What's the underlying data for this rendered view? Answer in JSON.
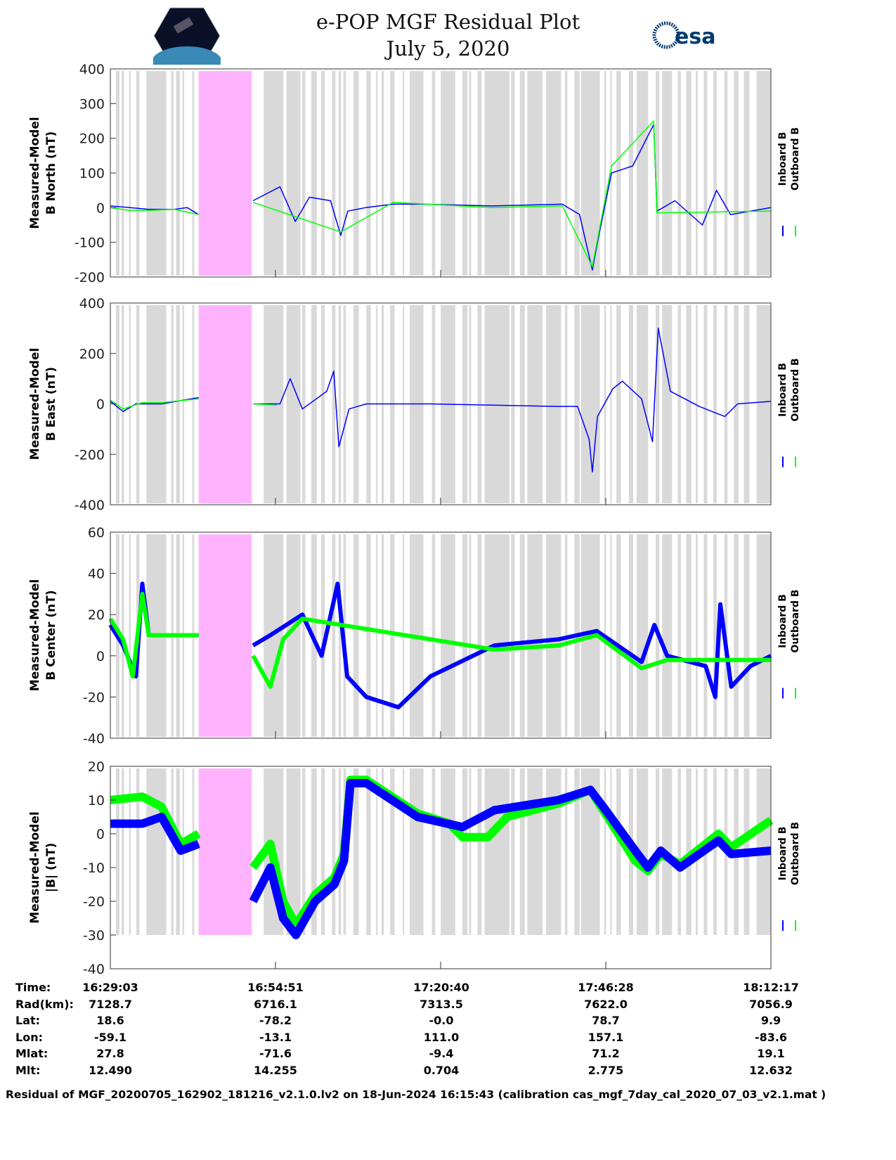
{
  "header": {
    "title": "e-POP MGF Residual Plot",
    "date": "July 5, 2020",
    "logo_left": "CASSIOPE",
    "logo_right": "esa"
  },
  "chart_data": [
    {
      "type": "line",
      "ylabel": [
        "Measured-Model",
        "B North (nT)"
      ],
      "ylim": [
        -200,
        400
      ],
      "yticks": [
        400,
        300,
        200,
        100,
        0,
        -100,
        -200
      ],
      "legend": [
        "Inboard B",
        "Outboard B"
      ],
      "series": [
        {
          "name": "Inboard B",
          "color": "#0000ff",
          "points": [
            [
              0,
              5
            ],
            [
              3,
              0
            ],
            [
              6,
              -5
            ],
            [
              10,
              -5
            ],
            [
              12,
              0
            ],
            [
              13.8,
              -20
            ],
            null,
            [
              22.3,
              20
            ],
            [
              26.5,
              60
            ],
            [
              28.9,
              -40
            ],
            [
              31.1,
              30
            ],
            [
              34.4,
              20
            ],
            [
              36,
              -80
            ],
            [
              37.1,
              -10
            ],
            [
              39.9,
              0
            ],
            [
              44.2,
              10
            ],
            [
              48.6,
              10
            ],
            [
              59.6,
              5
            ],
            [
              70.6,
              10
            ],
            [
              73.3,
              -20
            ],
            [
              75.3,
              -180
            ],
            [
              76.1,
              -100
            ],
            [
              78.3,
              100
            ],
            [
              81.6,
              120
            ],
            [
              84.9,
              240
            ],
            [
              85.4,
              -10
            ],
            [
              88.2,
              20
            ],
            [
              92.5,
              -50
            ],
            [
              94.7,
              50
            ],
            [
              96.9,
              -20
            ],
            [
              103.2,
              0
            ]
          ]
        },
        {
          "name": "Outboard B",
          "color": "#00ff00",
          "points": [
            [
              0,
              0
            ],
            [
              3,
              -8
            ],
            [
              6,
              -8
            ],
            [
              10,
              -5
            ],
            [
              13.8,
              -20
            ],
            null,
            [
              22.3,
              15
            ],
            [
              36,
              -70
            ],
            [
              44.2,
              15
            ],
            [
              59.6,
              0
            ],
            [
              70.6,
              5
            ],
            [
              75.3,
              -170
            ],
            [
              78.3,
              120
            ],
            [
              84.9,
              250
            ],
            [
              85.4,
              -15
            ],
            [
              103.2,
              -10
            ]
          ]
        }
      ]
    },
    {
      "type": "line",
      "ylabel": [
        "Measured-Model",
        "B East (nT)"
      ],
      "ylim": [
        -400,
        400
      ],
      "yticks": [
        400,
        200,
        0,
        -200,
        -400
      ],
      "legend": [
        "Inboard B",
        "Outboard B"
      ],
      "series": [
        {
          "name": "Inboard B",
          "color": "#0000ff",
          "points": [
            [
              0,
              10
            ],
            [
              2,
              -30
            ],
            [
              4,
              0
            ],
            [
              8,
              0
            ],
            [
              13.8,
              25
            ],
            null,
            [
              22.3,
              0
            ],
            [
              26.5,
              0
            ],
            [
              28.1,
              100
            ],
            [
              30,
              -20
            ],
            [
              33.8,
              50
            ],
            [
              34.9,
              130
            ],
            [
              35.7,
              -170
            ],
            [
              37.3,
              -20
            ],
            [
              40,
              0
            ],
            [
              50,
              0
            ],
            [
              70,
              -10
            ],
            [
              73,
              -10
            ],
            [
              74.8,
              -140
            ],
            [
              75.3,
              -270
            ],
            [
              76.1,
              -50
            ],
            [
              78.5,
              60
            ],
            [
              80,
              90
            ],
            [
              83,
              20
            ],
            [
              84.7,
              -150
            ],
            [
              85.6,
              300
            ],
            [
              87.5,
              50
            ],
            [
              92,
              -10
            ],
            [
              94,
              -30
            ],
            [
              96,
              -50
            ],
            [
              98,
              0
            ],
            [
              103.2,
              10
            ]
          ]
        },
        {
          "name": "Outboard B",
          "color": "#00ff00",
          "points": [
            [
              0,
              15
            ],
            [
              2,
              -20
            ],
            [
              5,
              5
            ],
            [
              8,
              5
            ],
            [
              13.8,
              20
            ],
            null,
            [
              22.3,
              0
            ],
            [
              26,
              -5
            ]
          ]
        }
      ]
    },
    {
      "type": "line",
      "ylabel": [
        "Measured-Model",
        "B Center (nT)"
      ],
      "ylim": [
        -40,
        60
      ],
      "yticks": [
        60,
        40,
        20,
        0,
        -20,
        -40
      ],
      "legend": [
        "Inboard B",
        "Outboard B"
      ],
      "series": [
        {
          "name": "Inboard B",
          "color": "#0000ff",
          "points": [
            [
              0,
              15
            ],
            [
              2,
              5
            ],
            [
              4,
              -10
            ],
            [
              5,
              35
            ],
            [
              6,
              10
            ],
            [
              13.8,
              10
            ],
            null,
            [
              22.3,
              5
            ],
            [
              25,
              10
            ],
            [
              30,
              20
            ],
            [
              33,
              0
            ],
            [
              35.5,
              35
            ],
            [
              37,
              -10
            ],
            [
              40,
              -20
            ],
            [
              45,
              -25
            ],
            [
              50,
              -10
            ],
            [
              60,
              5
            ],
            [
              70,
              8
            ],
            [
              76,
              12
            ],
            [
              83,
              -3
            ],
            [
              85,
              15
            ],
            [
              87,
              0
            ],
            [
              93,
              -5
            ],
            [
              94.5,
              -20
            ],
            [
              95.3,
              25
            ],
            [
              97,
              -15
            ],
            [
              100,
              -5
            ],
            [
              103.2,
              0
            ]
          ]
        },
        {
          "name": "Outboard B",
          "color": "#00ff00",
          "points": [
            [
              0,
              18
            ],
            [
              2,
              8
            ],
            [
              3.5,
              -10
            ],
            [
              5,
              30
            ],
            [
              6,
              10
            ],
            [
              13.8,
              10
            ],
            null,
            [
              22.3,
              0
            ],
            [
              25,
              -15
            ],
            [
              27,
              8
            ],
            [
              30,
              18
            ],
            [
              60,
              3
            ],
            [
              70,
              5
            ],
            [
              76,
              10
            ],
            [
              83,
              -6
            ],
            [
              87,
              -2
            ],
            [
              103.2,
              -2
            ]
          ]
        }
      ]
    },
    {
      "type": "line",
      "ylabel": [
        "Measured-Model",
        "|B| (nT)"
      ],
      "ylim": [
        -40,
        20
      ],
      "yticks": [
        20,
        10,
        0,
        -10,
        -20,
        -30,
        -40
      ],
      "legend": [
        "Inboard B",
        "Outboard B"
      ],
      "series": [
        {
          "name": "Outboard B",
          "color": "#00ff00",
          "points": [
            [
              0,
              10
            ],
            [
              5,
              11
            ],
            [
              8,
              8
            ],
            [
              11,
              -3
            ],
            [
              13.8,
              0
            ],
            null,
            [
              22.3,
              -10
            ],
            [
              25,
              -3
            ],
            [
              27,
              -20
            ],
            [
              29,
              -27
            ],
            [
              32,
              -18
            ],
            [
              35,
              -13
            ],
            [
              36.5,
              -6
            ],
            [
              37.5,
              16
            ],
            [
              40,
              16
            ],
            [
              48,
              6
            ],
            [
              53,
              3
            ],
            [
              55,
              -1
            ],
            [
              59,
              -1
            ],
            [
              62,
              5
            ],
            [
              70,
              9
            ],
            [
              75,
              13
            ],
            [
              77,
              7
            ],
            [
              82,
              -8
            ],
            [
              84,
              -11
            ],
            [
              86,
              -6
            ],
            [
              89,
              -9
            ],
            [
              95,
              0
            ],
            [
              97,
              -4
            ],
            [
              103.2,
              4
            ]
          ]
        },
        {
          "name": "Inboard B",
          "color": "#0000ff",
          "points": [
            [
              0,
              3
            ],
            [
              5,
              3
            ],
            [
              8,
              5
            ],
            [
              11,
              -5
            ],
            [
              13.8,
              -3
            ],
            null,
            [
              22.3,
              -20
            ],
            [
              25,
              -10
            ],
            [
              27,
              -25
            ],
            [
              29,
              -30
            ],
            [
              32,
              -20
            ],
            [
              35,
              -15
            ],
            [
              36.5,
              -8
            ],
            [
              37.5,
              15
            ],
            [
              40,
              15
            ],
            [
              48,
              5
            ],
            [
              55,
              2
            ],
            [
              60,
              7
            ],
            [
              70,
              10
            ],
            [
              75,
              13
            ],
            [
              77,
              8
            ],
            [
              82,
              -5
            ],
            [
              84,
              -10
            ],
            [
              86,
              -5
            ],
            [
              89,
              -10
            ],
            [
              95,
              -2
            ],
            [
              97,
              -6
            ],
            [
              103.2,
              -5
            ]
          ]
        }
      ]
    }
  ],
  "x_axis": {
    "duration_min": 103.2,
    "gap_min": [
      13.8,
      22.1
    ],
    "tick_min": [
      0,
      25.8,
      51.6,
      77.4,
      103.2
    ]
  },
  "table": {
    "labels": [
      "Time:",
      "Rad(km):",
      "Lat:",
      "Lon:",
      "Mlat:",
      "Mlt:"
    ],
    "columns": [
      [
        "16:29:03",
        "7128.7",
        "18.6",
        "-59.1",
        "27.8",
        "12.490"
      ],
      [
        "16:54:51",
        "6716.1",
        "-78.2",
        "-13.1",
        "-71.6",
        "14.255"
      ],
      [
        "17:20:40",
        "7313.5",
        "-0.0",
        "111.0",
        "-9.4",
        "0.704"
      ],
      [
        "17:46:28",
        "7622.0",
        "78.7",
        "157.1",
        "71.2",
        "2.775"
      ],
      [
        "18:12:17",
        "7056.9",
        "9.9",
        "-83.6",
        "19.1",
        "12.632"
      ]
    ]
  },
  "footer": "Residual of MGF_20200705_162902_181216_v2.1.0.lv2 on 18-Jun-2024 16:15:43 (calibration cas_mgf_7day_cal_2020_07_03_v2.1.mat )"
}
